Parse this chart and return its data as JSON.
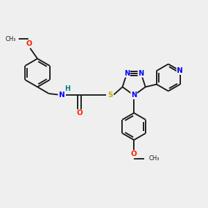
{
  "bg_color": "#efefef",
  "bond_color": "#1a1a1a",
  "bond_width": 1.4,
  "fig_size": [
    3.0,
    3.0
  ],
  "dpi": 100,
  "atom_colors": {
    "N": "#0000ff",
    "O": "#ff2200",
    "S": "#ccaa00",
    "H": "#008080",
    "C": "#1a1a1a"
  },
  "xlim": [
    0,
    10
  ],
  "ylim": [
    0,
    10
  ]
}
